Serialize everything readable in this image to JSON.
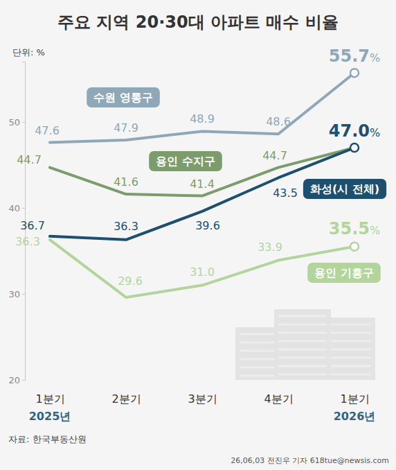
{
  "chart_data": {
    "type": "line",
    "title": "주요 지역 20·30대 아파트 매수 비율",
    "y_label": "단위: %",
    "categories": [
      "1분기",
      "2분기",
      "3분기",
      "4분기",
      "1분기"
    ],
    "x_group_labels": [
      "2025년",
      null,
      null,
      null,
      "2026년"
    ],
    "ylim": [
      20,
      57
    ],
    "yticks": [
      20,
      30,
      40,
      50
    ],
    "grid": false,
    "data_labels": true,
    "series": [
      {
        "name": "수원 영통구",
        "color": "#8ea7b9",
        "values": [
          47.6,
          47.9,
          48.9,
          48.6,
          55.7
        ],
        "value_labels": [
          "47.6",
          "47.9",
          "48.9",
          "48.6",
          "55.7%"
        ]
      },
      {
        "name": "용인 수지구",
        "color": "#7d9c6b",
        "values": [
          44.7,
          41.6,
          41.4,
          44.7,
          47.0
        ],
        "value_labels": [
          "44.7",
          "41.6",
          "41.4",
          "44.7",
          null
        ]
      },
      {
        "name": "화성(시 전체)",
        "color": "#1d4f6e",
        "values": [
          36.7,
          36.3,
          39.6,
          43.5,
          47.0
        ],
        "value_labels": [
          "36.7",
          "36.3",
          "39.6",
          "43.5",
          "47.0%"
        ]
      },
      {
        "name": "용인 기흥구",
        "color": "#b3d59b",
        "values": [
          36.3,
          29.6,
          31.0,
          33.9,
          35.5
        ],
        "value_labels": [
          "36.3",
          "29.6",
          "31.0",
          "33.9",
          "35.5%"
        ]
      }
    ],
    "source": "자료: 한국부동산원",
    "credit": "26,06,03 전진우 기자 618tue@newsis.com"
  }
}
